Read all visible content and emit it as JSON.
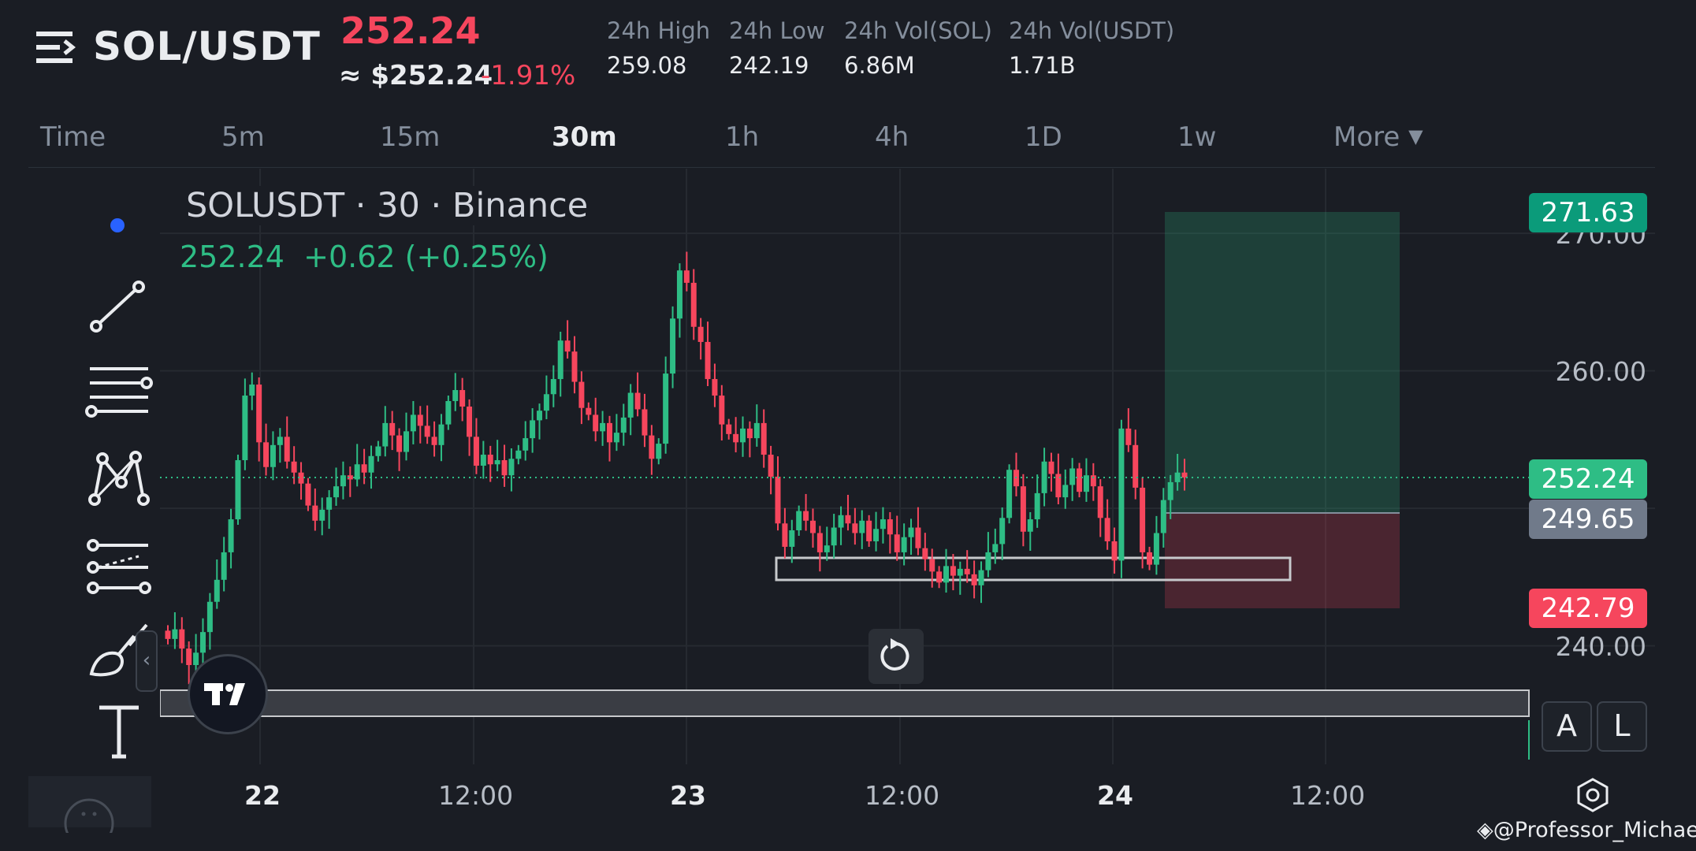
{
  "header": {
    "pair": "SOL/USDT",
    "last_price": "252.24",
    "approx_price": "≈ $252.24",
    "change_pct": "-1.91%",
    "stats": [
      {
        "label": "24h High",
        "value": "259.08"
      },
      {
        "label": "24h Low",
        "value": "242.19"
      },
      {
        "label": "24h Vol(SOL)",
        "value": "6.86M"
      },
      {
        "label": "24h Vol(USDT)",
        "value": "1.71B"
      }
    ]
  },
  "tabs": {
    "time": "Time",
    "items": [
      "5m",
      "15m",
      "30m",
      "1h",
      "4h",
      "1D",
      "1w"
    ],
    "active": "30m",
    "more": "More"
  },
  "chart": {
    "legend_title": "SOLUSDT · 30 · Binance",
    "legend_price": "252.24",
    "legend_change": "+0.62 (+0.25%)",
    "price_axis": [
      "270.00",
      "260.00",
      "240.00"
    ],
    "tags": {
      "target": "271.63",
      "last": "252.24",
      "entry": "249.65",
      "stop": "242.79"
    },
    "time_axis": [
      {
        "label": "22",
        "bold": true
      },
      {
        "label": "12:00",
        "bold": false
      },
      {
        "label": "23",
        "bold": true
      },
      {
        "label": "12:00",
        "bold": false
      },
      {
        "label": "24",
        "bold": true
      },
      {
        "label": "12:00",
        "bold": false
      }
    ],
    "scale_buttons": [
      "A",
      "L"
    ]
  },
  "chart_data": {
    "type": "candlestick",
    "symbol": "SOLUSDT",
    "interval": "30",
    "exchange": "Binance",
    "ylim": [
      234,
      274
    ],
    "last_price": 252.24,
    "position": {
      "entry": 249.65,
      "target": 271.63,
      "stop": 242.79
    },
    "support_zone": [
      245.5,
      247.1
    ],
    "colors": {
      "up": "#2ebd85",
      "down": "#f6465d"
    }
  },
  "credit": "@Professor_Michael"
}
